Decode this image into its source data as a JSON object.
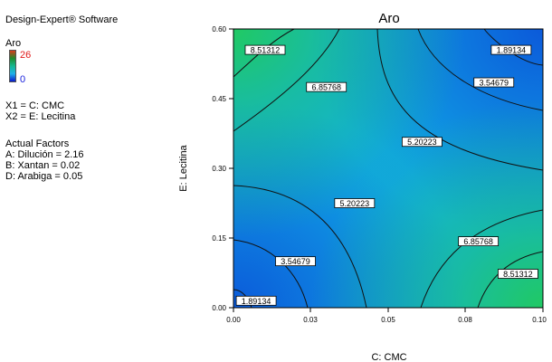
{
  "side_panel": {
    "software": "Design-Expert® Software",
    "response_name": "Aro",
    "legend_max": "26",
    "legend_min": "0",
    "x1": "X1 = C: CMC",
    "x2": "X2 = E: Lecitina",
    "actual_factors_title": "Actual Factors",
    "actual_factors": [
      "A: Dilución = 2.16",
      "B: Xantan = 0.02",
      "D: Arabiga = 0.05"
    ]
  },
  "chart_data": {
    "type": "contour",
    "title": "Aro",
    "xlabel": "C: CMC",
    "ylabel": "E: Lecitina",
    "xlim": [
      0.0,
      0.1
    ],
    "ylim": [
      0.0,
      0.6
    ],
    "x_ticks": [
      "0.00",
      "0.03",
      "0.05",
      "0.08",
      "0.10"
    ],
    "y_ticks": [
      "0.00",
      "0.15",
      "0.30",
      "0.45",
      "0.60"
    ],
    "colors": {
      "high": "#22cc55",
      "mid": "#10aee6",
      "low": "#0a3ed6",
      "line": "#111111"
    },
    "contour_labels": [
      {
        "text": "1.89134",
        "x": 0.0833,
        "y": 0.555
      },
      {
        "text": "3.54679",
        "x": 0.0777,
        "y": 0.485
      },
      {
        "text": "5.20223",
        "x": 0.0545,
        "y": 0.357
      },
      {
        "text": "6.85768",
        "x": 0.0236,
        "y": 0.475
      },
      {
        "text": "8.51312",
        "x": 0.0038,
        "y": 0.555
      },
      {
        "text": "5.20223",
        "x": 0.0327,
        "y": 0.225
      },
      {
        "text": "3.54679",
        "x": 0.0136,
        "y": 0.1
      },
      {
        "text": "1.89134",
        "x": 0.0009,
        "y": 0.015
      },
      {
        "text": "6.85768",
        "x": 0.0727,
        "y": 0.143
      },
      {
        "text": "8.51312",
        "x": 0.0855,
        "y": 0.073
      }
    ]
  }
}
